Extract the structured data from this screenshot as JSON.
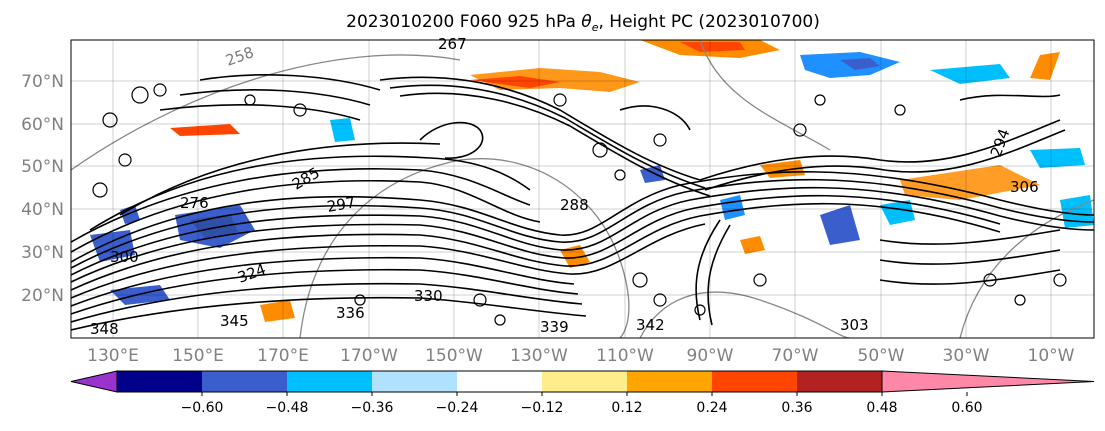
{
  "title_main": "2023010200 F060 925 hPa ",
  "title_theta": "θ",
  "title_sub": "e",
  "title_rest": ", Height PC (2023010700)",
  "lat_labels": [
    "70°N",
    "60°N",
    "50°N",
    "40°N",
    "30°N",
    "20°N"
  ],
  "lon_labels": [
    "130°E",
    "150°E",
    "170°E",
    "170°W",
    "150°W",
    "130°W",
    "110°W",
    "90°W",
    "70°W",
    "50°W",
    "30°W",
    "10°W"
  ],
  "colorbar": {
    "colors": [
      "#9a32cd",
      "#00008b",
      "#3a5fcd",
      "#00bfff",
      "#b0e2ff",
      "#ffffff",
      "#ffec8b",
      "#ffa500",
      "#ff4500",
      "#b22222",
      "#ff88a8"
    ],
    "tick_labels": [
      "−0.60",
      "−0.48",
      "−0.36",
      "−0.24",
      "−0.12",
      "0.12",
      "0.24",
      "0.36",
      "0.48",
      "0.60"
    ]
  },
  "contour_labels": [
    "267",
    "258",
    "276",
    "306",
    "285",
    "294",
    "297",
    "300",
    "324",
    "330",
    "336",
    "345",
    "342",
    "348",
    "339",
    "288",
    "303"
  ]
}
